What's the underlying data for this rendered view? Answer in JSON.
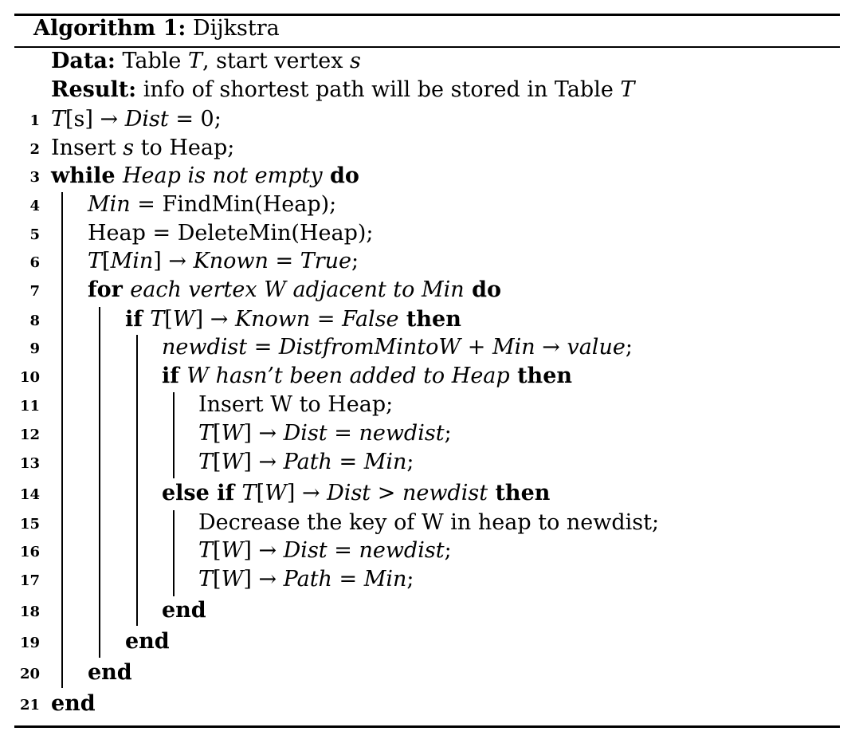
{
  "algorithm": {
    "label": "Algorithm 1:",
    "name": "Dijkstra",
    "data_label": "Data:",
    "data_text_pre": "Table ",
    "data_T": "T",
    "data_text_mid": ", start vertex ",
    "data_s": "s",
    "result_label": "Result:",
    "result_text": "info of shortest path will be stored in Table ",
    "result_T": "T"
  },
  "lines": [
    {
      "n": "1",
      "indent": 0,
      "parts": [
        [
          "m",
          "T"
        ],
        [
          "t",
          "[s] → "
        ],
        [
          "m",
          "Dist"
        ],
        [
          "t",
          " = 0;"
        ]
      ]
    },
    {
      "n": "2",
      "indent": 0,
      "parts": [
        [
          "t",
          "Insert "
        ],
        [
          "m",
          "s"
        ],
        [
          "t",
          " to Heap;"
        ]
      ]
    },
    {
      "n": "3",
      "indent": 0,
      "parts": [
        [
          "k",
          "while "
        ],
        [
          "m",
          "Heap is not empty"
        ],
        [
          "k",
          " do"
        ]
      ]
    },
    {
      "n": "4",
      "indent": 1,
      "parts": [
        [
          "m",
          "Min"
        ],
        [
          "t",
          " = FindMin(Heap);"
        ]
      ]
    },
    {
      "n": "5",
      "indent": 1,
      "parts": [
        [
          "t",
          "Heap = DeleteMin(Heap);"
        ]
      ]
    },
    {
      "n": "6",
      "indent": 1,
      "parts": [
        [
          "m",
          "T"
        ],
        [
          "t",
          "["
        ],
        [
          "m",
          "Min"
        ],
        [
          "t",
          "] → "
        ],
        [
          "m",
          "Known"
        ],
        [
          "t",
          " = "
        ],
        [
          "m",
          "True"
        ],
        [
          "t",
          ";"
        ]
      ]
    },
    {
      "n": "7",
      "indent": 1,
      "parts": [
        [
          "k",
          "for "
        ],
        [
          "m",
          "each vertex W adjacent to Min"
        ],
        [
          "k",
          " do"
        ]
      ]
    },
    {
      "n": "8",
      "indent": 2,
      "parts": [
        [
          "k",
          "if "
        ],
        [
          "m",
          "T"
        ],
        [
          "t",
          "["
        ],
        [
          "m",
          "W"
        ],
        [
          "t",
          "] → "
        ],
        [
          "m",
          "Known"
        ],
        [
          "t",
          " = "
        ],
        [
          "m",
          "False"
        ],
        [
          "k",
          " then"
        ]
      ]
    },
    {
      "n": "9",
      "indent": 3,
      "parts": [
        [
          "m",
          "newdist"
        ],
        [
          "t",
          " = "
        ],
        [
          "m",
          "DistfromMintoW"
        ],
        [
          "t",
          " + "
        ],
        [
          "m",
          "Min"
        ],
        [
          "t",
          " → "
        ],
        [
          "m",
          "value"
        ],
        [
          "t",
          ";"
        ]
      ]
    },
    {
      "n": "10",
      "indent": 3,
      "parts": [
        [
          "k",
          "if "
        ],
        [
          "m",
          "W hasn’t been added to Heap"
        ],
        [
          "k",
          " then"
        ]
      ]
    },
    {
      "n": "11",
      "indent": 4,
      "parts": [
        [
          "t",
          "Insert W to Heap;"
        ]
      ]
    },
    {
      "n": "12",
      "indent": 4,
      "parts": [
        [
          "m",
          "T"
        ],
        [
          "t",
          "["
        ],
        [
          "m",
          "W"
        ],
        [
          "t",
          "] → "
        ],
        [
          "m",
          "Dist"
        ],
        [
          "t",
          " = "
        ],
        [
          "m",
          "newdist"
        ],
        [
          "t",
          ";"
        ]
      ]
    },
    {
      "n": "13",
      "indent": 4,
      "parts": [
        [
          "m",
          "T"
        ],
        [
          "t",
          "["
        ],
        [
          "m",
          "W"
        ],
        [
          "t",
          "] → "
        ],
        [
          "m",
          "Path"
        ],
        [
          "t",
          " = "
        ],
        [
          "m",
          "Min"
        ],
        [
          "t",
          ";"
        ]
      ]
    },
    {
      "n": "14",
      "indent": 3,
      "parts": [
        [
          "k",
          "else if "
        ],
        [
          "m",
          "T"
        ],
        [
          "t",
          "["
        ],
        [
          "m",
          "W"
        ],
        [
          "t",
          "] → "
        ],
        [
          "m",
          "Dist"
        ],
        [
          "t",
          " > "
        ],
        [
          "m",
          "newdist"
        ],
        [
          "k",
          " then"
        ]
      ]
    },
    {
      "n": "15",
      "indent": 4,
      "parts": [
        [
          "t",
          "Decrease the key of W in heap to newdist;"
        ]
      ]
    },
    {
      "n": "16",
      "indent": 4,
      "parts": [
        [
          "m",
          "T"
        ],
        [
          "t",
          "["
        ],
        [
          "m",
          "W"
        ],
        [
          "t",
          "] → "
        ],
        [
          "m",
          "Dist"
        ],
        [
          "t",
          " = "
        ],
        [
          "m",
          "newdist"
        ],
        [
          "t",
          ";"
        ]
      ]
    },
    {
      "n": "17",
      "indent": 4,
      "parts": [
        [
          "m",
          "T"
        ],
        [
          "t",
          "["
        ],
        [
          "m",
          "W"
        ],
        [
          "t",
          "] → "
        ],
        [
          "m",
          "Path"
        ],
        [
          "t",
          " = "
        ],
        [
          "m",
          "Min"
        ],
        [
          "t",
          ";"
        ]
      ]
    },
    {
      "n": "18",
      "indent": 3,
      "parts": [
        [
          "k",
          "end"
        ]
      ]
    },
    {
      "n": "19",
      "indent": 2,
      "parts": [
        [
          "k",
          "end"
        ]
      ]
    },
    {
      "n": "20",
      "indent": 1,
      "parts": [
        [
          "k",
          "end"
        ]
      ]
    },
    {
      "n": "21",
      "indent": 0,
      "parts": [
        [
          "k",
          "end"
        ]
      ]
    }
  ]
}
